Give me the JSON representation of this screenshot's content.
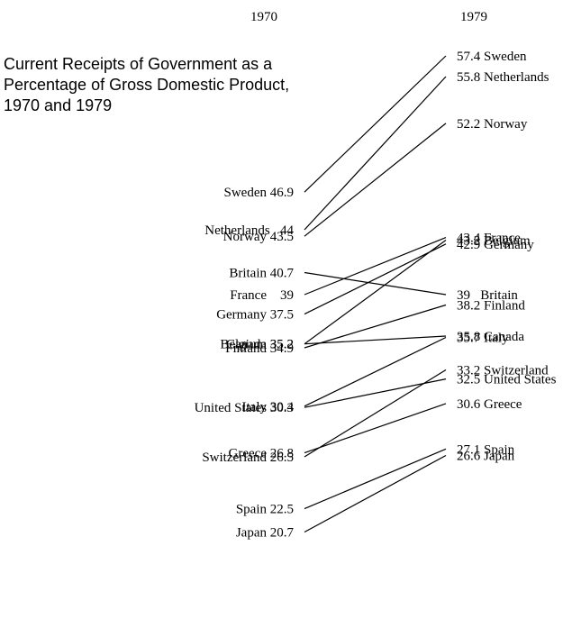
{
  "chart_data": {
    "type": "slope",
    "title": "Current Receipts of Government as a Percentage of Gross Domestic Product, 1970 and 1979",
    "columns": [
      "1970",
      "1979"
    ],
    "series": [
      {
        "name": "Sweden",
        "label_1970": "Sweden 46.9",
        "label_1979": "57.4 Sweden",
        "v1970": 46.9,
        "v1979": 57.4
      },
      {
        "name": "Netherlands",
        "label_1970": "Netherlands   44",
        "label_1979": "55.8 Netherlands",
        "v1970": 44,
        "v1979": 55.8
      },
      {
        "name": "Norway",
        "label_1970": "Norway 43.5",
        "label_1979": "52.2 Norway",
        "v1970": 43.5,
        "v1979": 52.2
      },
      {
        "name": "Britain",
        "label_1970": "Britain 40.7",
        "label_1979": "39   Britain",
        "v1970": 40.7,
        "v1979": 39
      },
      {
        "name": "France",
        "label_1970": "France    39",
        "label_1979": "43.4 France",
        "v1970": 39,
        "v1979": 43.4
      },
      {
        "name": "Germany",
        "label_1970": "Germany 37.5",
        "label_1979": "42.9 Germany",
        "v1970": 37.5,
        "v1979": 42.9
      },
      {
        "name": "Belgium",
        "label_1970": "Belgium 35.2",
        "label_1979": "43.2 Belgium",
        "v1970": 35.2,
        "v1979": 43.2
      },
      {
        "name": "Canada",
        "label_1970": "Canada 35.2",
        "label_1979": "35.8 Canada",
        "v1970": 35.2,
        "v1979": 35.8
      },
      {
        "name": "Finland",
        "label_1970": "Finland 34.9",
        "label_1979": "38.2 Finland",
        "v1970": 34.9,
        "v1979": 38.2
      },
      {
        "name": "Italy",
        "label_1970": "Italy 30.4",
        "label_1979": "35.7 Italy",
        "v1970": 30.4,
        "v1979": 35.7
      },
      {
        "name": "United States",
        "label_1970": "United States 30.3",
        "label_1979": "32.5 United States",
        "v1970": 30.3,
        "v1979": 32.5
      },
      {
        "name": "Greece",
        "label_1970": "Greece 26.8",
        "label_1979": "30.6 Greece",
        "v1970": 26.8,
        "v1979": 30.6
      },
      {
        "name": "Switzerland",
        "label_1970": "Switzerland 26.5",
        "label_1979": "33.2 Switzerland",
        "v1970": 26.5,
        "v1979": 33.2
      },
      {
        "name": "Spain",
        "label_1970": "Spain 22.5",
        "label_1979": "27.1 Spain",
        "v1970": 22.5,
        "v1979": 27.1
      },
      {
        "name": "Japan",
        "label_1970": "Japan 20.7",
        "label_1979": "26.6 Japan",
        "v1970": 20.7,
        "v1979": 26.6
      }
    ],
    "xlabel": "",
    "ylabel": "",
    "ylim": [
      20.7,
      57.4
    ],
    "grid": false,
    "legend": "none"
  }
}
